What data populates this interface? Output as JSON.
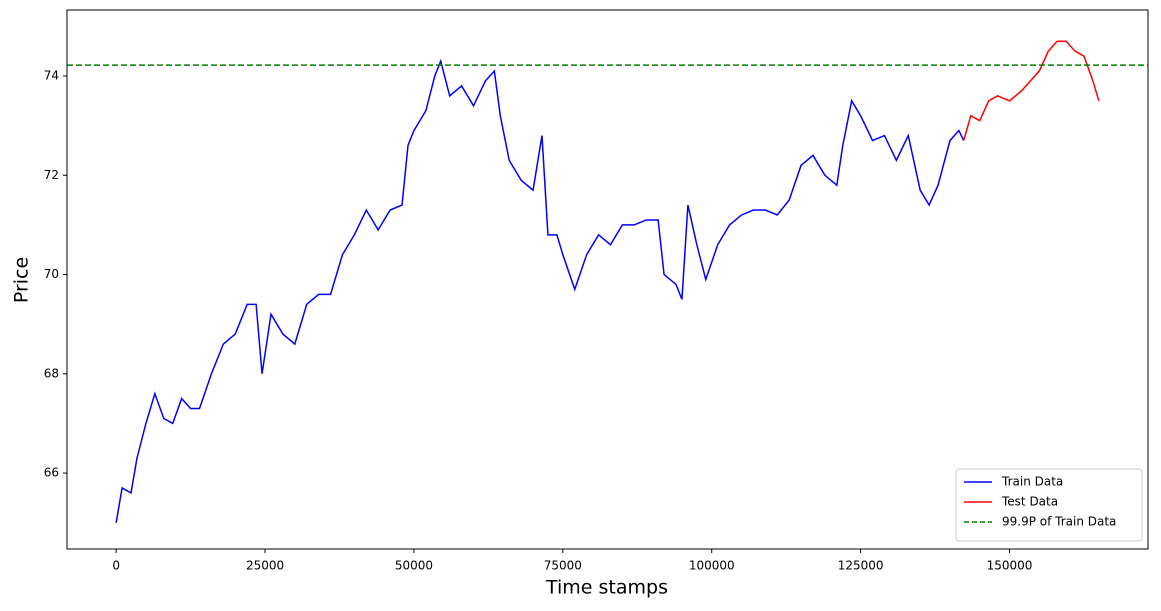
{
  "chart_data": {
    "type": "line",
    "x_label": "Time stamps",
    "y_label": "Price",
    "xlim": [
      -8250,
      173250
    ],
    "ylim": [
      64.47,
      75.33
    ],
    "xticks": [
      0,
      25000,
      50000,
      75000,
      100000,
      125000,
      150000
    ],
    "yticks": [
      66,
      68,
      70,
      72,
      74
    ],
    "legend": "lower right",
    "series": [
      {
        "name": "Train Data",
        "color": "#0000ff",
        "x": [
          0,
          1000,
          2500,
          3500,
          5000,
          6500,
          8000,
          9500,
          11000,
          12500,
          14000,
          16000,
          18000,
          20000,
          22000,
          23500,
          24500,
          26000,
          28000,
          30000,
          32000,
          34000,
          36000,
          38000,
          40000,
          42000,
          44000,
          46000,
          48000,
          49000,
          50000,
          52000,
          53500,
          54500,
          56000,
          58000,
          60000,
          62000,
          63500,
          64500,
          66000,
          68000,
          70000,
          71500,
          72500,
          74000,
          75000,
          77000,
          79000,
          81000,
          83000,
          85000,
          87000,
          89000,
          91000,
          92000,
          94000,
          95000,
          96000,
          97500,
          99000,
          101000,
          103000,
          105000,
          107000,
          109000,
          111000,
          113000,
          115000,
          117000,
          119000,
          121000,
          122000,
          123500,
          125000,
          127000,
          129000,
          131000,
          133000,
          135000,
          136500,
          138000,
          140000,
          141500,
          142300
        ],
        "values": [
          65.0,
          65.7,
          65.6,
          66.3,
          67.0,
          67.6,
          67.1,
          67.0,
          67.5,
          67.3,
          67.3,
          68.0,
          68.6,
          68.8,
          69.4,
          69.4,
          68.0,
          69.2,
          68.8,
          68.6,
          69.4,
          69.6,
          69.6,
          70.4,
          70.8,
          71.3,
          70.9,
          71.3,
          71.4,
          72.6,
          72.9,
          73.3,
          74.0,
          74.3,
          73.6,
          73.8,
          73.4,
          73.9,
          74.1,
          73.2,
          72.3,
          71.9,
          71.7,
          72.8,
          70.8,
          70.8,
          70.4,
          69.7,
          70.4,
          70.8,
          70.6,
          71.0,
          71.0,
          71.1,
          71.1,
          70.0,
          69.8,
          69.5,
          71.4,
          70.6,
          69.9,
          70.6,
          71.0,
          71.2,
          71.3,
          71.3,
          71.2,
          71.5,
          72.2,
          72.4,
          72.0,
          71.8,
          72.6,
          73.5,
          73.2,
          72.7,
          72.8,
          72.3,
          72.8,
          71.7,
          71.4,
          71.8,
          72.7,
          72.9,
          72.7
        ]
      },
      {
        "name": "Test Data",
        "color": "#ff0000",
        "x": [
          142300,
          143500,
          145000,
          146500,
          148000,
          150000,
          152000,
          153500,
          155000,
          156500,
          158000,
          159500,
          161000,
          162500,
          164000,
          165000
        ],
        "values": [
          72.7,
          73.2,
          73.1,
          73.5,
          73.6,
          73.5,
          73.7,
          73.9,
          74.1,
          74.5,
          74.7,
          74.7,
          74.5,
          74.4,
          73.9,
          73.5
        ]
      }
    ],
    "hlines": [
      {
        "name": "99.9P of Train Data",
        "value": 74.22,
        "color": "#008000"
      }
    ]
  }
}
